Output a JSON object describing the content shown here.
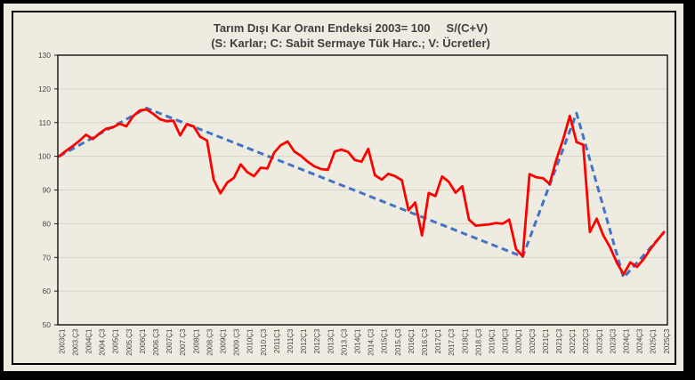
{
  "window": {
    "frame_color": "#000000",
    "canvas_color": "#EEECE1",
    "chart_border_color": "#000000",
    "gridline_color": "#D6D3C8"
  },
  "chart_data": {
    "type": "line",
    "title": "Tarım Dışı Kar Oranı Endeksi 2003= 100     S/(C+V)",
    "subtitle": "(S: Karlar; C: Sabit Sermaye Tük Harc.; V: Ücretler)",
    "ylim": [
      50,
      130
    ],
    "yticks": [
      50,
      60,
      70,
      80,
      90,
      100,
      110,
      120,
      130
    ],
    "grid": true,
    "legend_position": "none",
    "x_tick_labels": [
      "2003Ç1",
      "2003.Ç3",
      "2004Ç1",
      "2004.Ç3",
      "2005Ç1",
      "2005.Ç3",
      "2006Ç1",
      "2006.Ç3",
      "2007Ç1",
      "2007.Ç3",
      "2008Ç1",
      "2008.Ç3",
      "2009Ç1",
      "2009.Ç3",
      "2010Ç1",
      "2010.Ç3",
      "2011Ç1",
      "2011Ç3",
      "2012Ç1",
      "2012Ç3",
      "2013Ç1",
      "2013.Ç3",
      "2014Ç1",
      "2014.Ç3",
      "2015Ç1",
      "2015.Ç3",
      "2016Ç1",
      "2016.Ç3",
      "2017Ç1",
      "2017.Ç3",
      "2018Ç1",
      "2018.Ç3",
      "2019Ç1",
      "2019Ç3",
      "2020Ç1",
      "2020Ç3",
      "2021Ç1",
      "2021Ç3",
      "2022Ç1",
      "2022Ç3",
      "2023Ç1",
      "2023Ç3",
      "2024Ç1",
      "2024Ç3",
      "2025Ç1",
      "2025Ç3"
    ],
    "categories": [
      "2003Ç1",
      "2003Ç2",
      "2003Ç3",
      "2003Ç4",
      "2004Ç1",
      "2004Ç2",
      "2004Ç3",
      "2004Ç4",
      "2005Ç1",
      "2005Ç2",
      "2005Ç3",
      "2005Ç4",
      "2006Ç1",
      "2006Ç2",
      "2006Ç3",
      "2006Ç4",
      "2007Ç1",
      "2007Ç2",
      "2007Ç3",
      "2007Ç4",
      "2008Ç1",
      "2008Ç2",
      "2008Ç3",
      "2008Ç4",
      "2009Ç1",
      "2009Ç2",
      "2009Ç3",
      "2009Ç4",
      "2010Ç1",
      "2010Ç2",
      "2010Ç3",
      "2010Ç4",
      "2011Ç1",
      "2011Ç2",
      "2011Ç3",
      "2011Ç4",
      "2012Ç1",
      "2012Ç2",
      "2012Ç3",
      "2012Ç4",
      "2013Ç1",
      "2013Ç2",
      "2013Ç3",
      "2013Ç4",
      "2014Ç1",
      "2014Ç2",
      "2014Ç3",
      "2014Ç4",
      "2015Ç1",
      "2015Ç2",
      "2015Ç3",
      "2015Ç4",
      "2016Ç1",
      "2016Ç2",
      "2016Ç3",
      "2016Ç4",
      "2017Ç1",
      "2017Ç2",
      "2017Ç3",
      "2017Ç4",
      "2018Ç1",
      "2018Ç2",
      "2018Ç3",
      "2018Ç4",
      "2019Ç1",
      "2019Ç2",
      "2019Ç3",
      "2019Ç4",
      "2020Ç1",
      "2020Ç2",
      "2020Ç3",
      "2020Ç4",
      "2021Ç1",
      "2021Ç2",
      "2021Ç3",
      "2021Ç4",
      "2022Ç1",
      "2022Ç2",
      "2022Ç3",
      "2022Ç4",
      "2023Ç1",
      "2023Ç2",
      "2023Ç3",
      "2023Ç4",
      "2024Ç1",
      "2024Ç2",
      "2024Ç3",
      "2024Ç4",
      "2025Ç1",
      "2025Ç2",
      "2025Ç3"
    ],
    "series": [
      {
        "id": "trend-dashed",
        "color": "#4472C4",
        "style": "dashed",
        "anchors": [
          {
            "at": "2003Ç1",
            "value": 100
          },
          {
            "at": "2006Ç2",
            "value": 114.3
          },
          {
            "at": "2020Ç2",
            "value": 70.2
          },
          {
            "at": "2022Ç2",
            "value": 112.8
          },
          {
            "at": "2024Ç1",
            "value": 64.0
          },
          {
            "at": "2025Ç3",
            "value": 77.3
          }
        ]
      },
      {
        "id": "kar-orani-endeksi",
        "color": "#FF0000",
        "style": "solid",
        "values": [
          100,
          101.6,
          103,
          104.6,
          106.4,
          105.1,
          106.8,
          108.2,
          108.6,
          109.7,
          108.9,
          111.9,
          113.6,
          113.9,
          112.6,
          111,
          110.4,
          110.6,
          106.2,
          109.5,
          108.9,
          105.8,
          104.7,
          93,
          89,
          92.2,
          93.6,
          97.6,
          95.3,
          94.1,
          96.6,
          96.4,
          101.1,
          103.3,
          104.4,
          101.4,
          100.1,
          98.4,
          97,
          96.2,
          96,
          101.4,
          102,
          101.3,
          98.9,
          98.4,
          102.2,
          94.4,
          93.1,
          94.8,
          94.1,
          92.9,
          84,
          86.3,
          76.5,
          89.1,
          88.2,
          94,
          92.4,
          89.2,
          91.1,
          81.2,
          79.4,
          79.6,
          79.8,
          80.2,
          80,
          81.2,
          72.5,
          70.3,
          94.7,
          93.8,
          93.5,
          91.8,
          99,
          105,
          112,
          104.2,
          103.4,
          77.5,
          81.5,
          76.5,
          73,
          68.5,
          65,
          68.5,
          67.2,
          69.5,
          72.5,
          75,
          77.5
        ]
      }
    ]
  }
}
